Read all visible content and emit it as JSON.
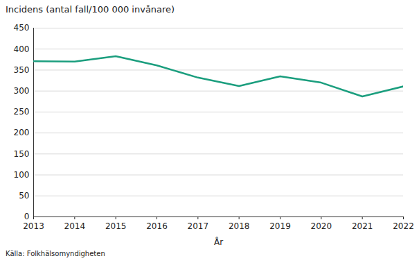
{
  "chart_data": {
    "type": "line",
    "y_label": "Incidens (antal fall/100 000 invånare)",
    "x_label": "År",
    "source": "Källa: Folkhälsomyndigheten",
    "x": [
      2013,
      2014,
      2015,
      2016,
      2017,
      2018,
      2019,
      2020,
      2021,
      2022
    ],
    "values": [
      371,
      370,
      383,
      361,
      332,
      312,
      335,
      320,
      287,
      311
    ],
    "color": "#1b9e7e",
    "xlim": [
      2013,
      2022
    ],
    "xticks": [
      2013,
      2014,
      2015,
      2016,
      2017,
      2018,
      2019,
      2020,
      2021,
      2022
    ],
    "ylim": [
      0,
      450
    ],
    "yticks": [
      0,
      50,
      100,
      150,
      200,
      250,
      300,
      350,
      400,
      450
    ],
    "grid": true
  }
}
